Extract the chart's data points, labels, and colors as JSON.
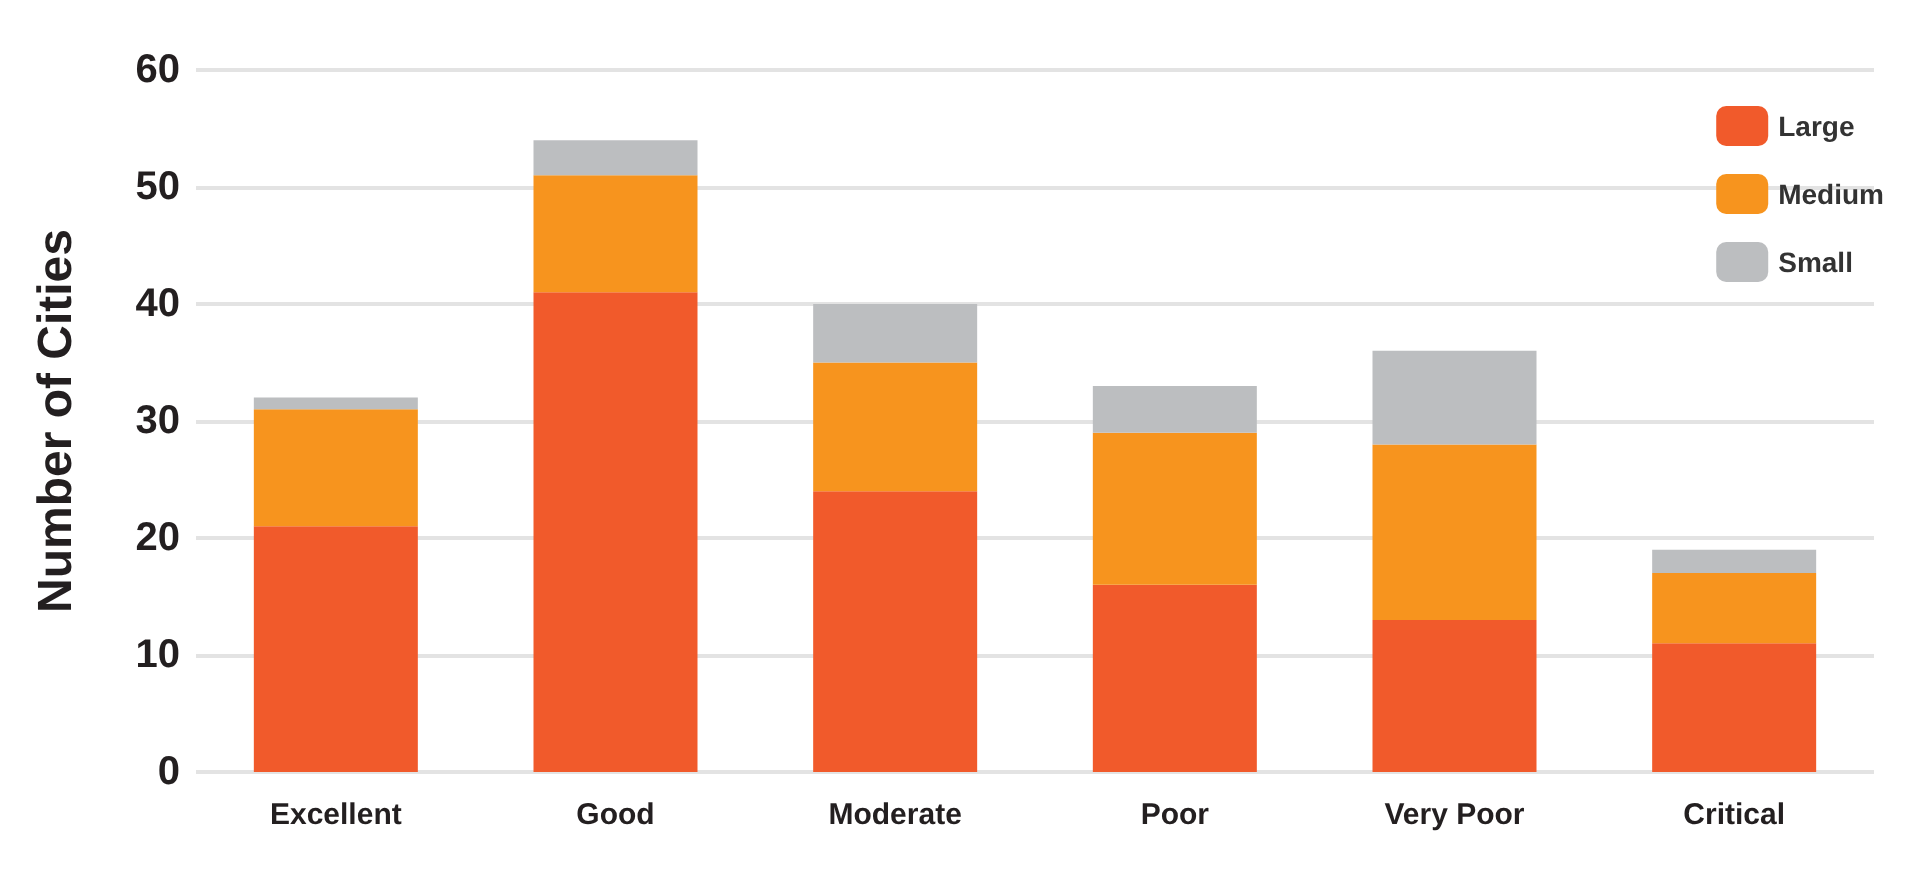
{
  "chart_data": {
    "type": "bar",
    "stacked": true,
    "ylabel": "Number of Cities",
    "categories": [
      "Excellent",
      "Good",
      "Moderate",
      "Poor",
      "Very Poor",
      "Critical"
    ],
    "series": [
      {
        "name": "Large",
        "color": "#f15a2b",
        "values": [
          21,
          41,
          24,
          16,
          13,
          11
        ]
      },
      {
        "name": "Medium",
        "color": "#f7941e",
        "values": [
          10,
          10,
          11,
          13,
          15,
          6
        ]
      },
      {
        "name": "Small",
        "color": "#bcbec0",
        "values": [
          1,
          3,
          5,
          4,
          8,
          2
        ]
      }
    ],
    "ylim": [
      0,
      60
    ],
    "yticks": [
      0,
      10,
      20,
      30,
      40,
      50,
      60
    ],
    "grid": true,
    "legend": "top right"
  }
}
